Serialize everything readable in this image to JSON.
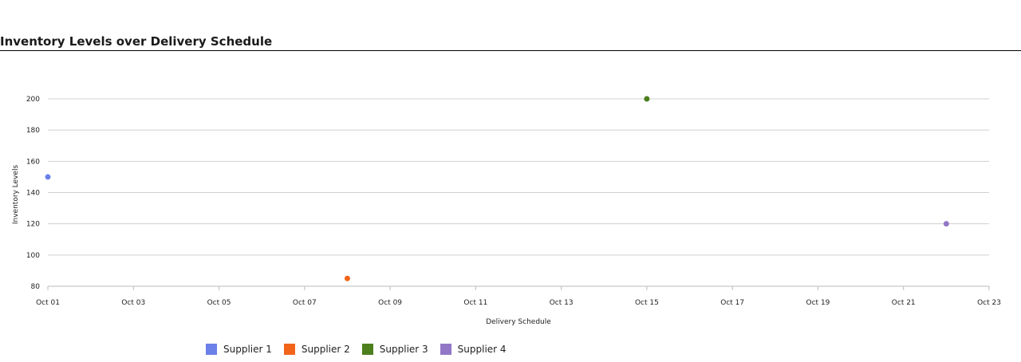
{
  "title": "Inventory Levels over Delivery Schedule",
  "chart_data": {
    "type": "scatter",
    "title": "Inventory Levels over Delivery Schedule",
    "xlabel": "Delivery Schedule",
    "ylabel": "Inventory Levels",
    "xlim": [
      "2023-10-01",
      "2023-10-23"
    ],
    "ylim": [
      80,
      200
    ],
    "x_ticks": [
      "Oct 01",
      "Oct 03",
      "Oct 05",
      "Oct 07",
      "Oct 09",
      "Oct 11",
      "Oct 13",
      "Oct 15",
      "Oct 17",
      "Oct 19",
      "Oct 21",
      "Oct 23"
    ],
    "y_ticks": [
      80,
      100,
      120,
      140,
      160,
      180,
      200
    ],
    "grid": true,
    "legend_position": "bottom",
    "series": [
      {
        "name": "Supplier 1",
        "color": "#6b80e8",
        "points": [
          {
            "x": "2023-10-01",
            "y": 150
          }
        ]
      },
      {
        "name": "Supplier 2",
        "color": "#f26419",
        "points": [
          {
            "x": "2023-10-08",
            "y": 85
          }
        ]
      },
      {
        "name": "Supplier 3",
        "color": "#4d7f1f",
        "points": [
          {
            "x": "2023-10-15",
            "y": 200
          }
        ]
      },
      {
        "name": "Supplier 4",
        "color": "#9277c6",
        "points": [
          {
            "x": "2023-10-22",
            "y": 120
          }
        ]
      }
    ]
  }
}
